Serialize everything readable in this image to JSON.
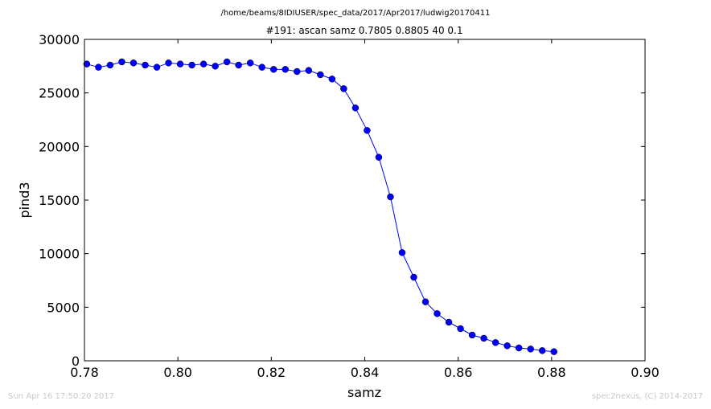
{
  "figure": {
    "path_title": "/home/beams/8IDIUSER/spec_data/2017/Apr2017/ludwig20170411",
    "footer_left": "Sun Apr 16 17:50:20 2017",
    "footer_right": "spec2nexus, (C) 2014-2017"
  },
  "chart_data": {
    "type": "line",
    "title": "#191: ascan  samz 0.7805 0.8805  40 0.1",
    "xlabel": "samz",
    "ylabel": "pind3",
    "xlim": [
      0.78,
      0.9
    ],
    "ylim": [
      0,
      30000
    ],
    "xticks": [
      "0.78",
      "0.80",
      "0.82",
      "0.84",
      "0.86",
      "0.88",
      "0.90"
    ],
    "yticks": [
      "0",
      "5000",
      "10000",
      "15000",
      "20000",
      "25000",
      "30000"
    ],
    "grid": false,
    "line_color": "#0000ff",
    "marker_color": "#0000ff",
    "series": [
      {
        "x": [
          0.7805,
          0.783,
          0.7855,
          0.788,
          0.7905,
          0.793,
          0.7955,
          0.798,
          0.8005,
          0.803,
          0.8055,
          0.808,
          0.8105,
          0.813,
          0.8155,
          0.818,
          0.8205,
          0.823,
          0.8255,
          0.828,
          0.8305,
          0.833,
          0.8355,
          0.838,
          0.8405,
          0.843,
          0.8455,
          0.848,
          0.8505,
          0.853,
          0.8555,
          0.858,
          0.8605,
          0.863,
          0.8655,
          0.868,
          0.8705,
          0.873,
          0.8755,
          0.878,
          0.8805
        ],
        "y": [
          27700,
          27400,
          27600,
          27900,
          27800,
          27600,
          27400,
          27800,
          27700,
          27600,
          27700,
          27500,
          27900,
          27600,
          27800,
          27400,
          27200,
          27200,
          27000,
          27100,
          26700,
          26300,
          25400,
          23600,
          21500,
          19000,
          15300,
          10100,
          7800,
          5500,
          4400,
          3600,
          3000,
          2400,
          2100,
          1700,
          1400,
          1200,
          1100,
          950,
          850
        ]
      }
    ]
  }
}
